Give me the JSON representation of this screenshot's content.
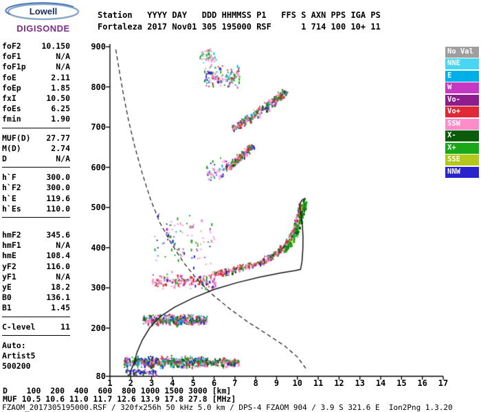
{
  "logo": {
    "top": "Lowell",
    "bottom": "DIGISONDE"
  },
  "header": {
    "line1": "Station   YYYY DAY   DDD HHMMSS P1   FFS S AXN PPS IGA PS",
    "line2": "Fortaleza 2017 Nov01 305 195000 RSF      1 714 100 10+ 11"
  },
  "params": {
    "groups": [
      {
        "rows": [
          [
            "foF2",
            "10.150"
          ],
          [
            "foF1",
            "N/A"
          ],
          [
            "foF1p",
            "N/A"
          ],
          [
            "foE",
            "2.11"
          ],
          [
            "foEp",
            "1.85"
          ],
          [
            "fxI",
            "10.50"
          ],
          [
            "foEs",
            "6.25"
          ],
          [
            "fmin",
            "1.90"
          ]
        ]
      },
      {
        "rows": [
          [
            "MUF(D)",
            "27.77"
          ],
          [
            "M(D)",
            "2.74"
          ],
          [
            "D",
            "N/A"
          ]
        ]
      },
      {
        "rows": [
          [
            "h`F",
            "300.0"
          ],
          [
            "h`F2",
            "300.0"
          ],
          [
            "h`E",
            "119.6"
          ],
          [
            "h`Es",
            "110.0"
          ]
        ]
      },
      {
        "rows": [
          [
            "hmF2",
            "345.6"
          ],
          [
            "hmF1",
            "N/A"
          ],
          [
            "hmE",
            "108.4"
          ],
          [
            "yF2",
            "116.0"
          ],
          [
            "yF1",
            "N/A"
          ],
          [
            "yE",
            "18.2"
          ],
          [
            "B0",
            "136.1"
          ],
          [
            "B1",
            "1.45"
          ]
        ]
      },
      {
        "rows": [
          [
            "C-level",
            "11"
          ]
        ]
      }
    ],
    "auto_lines": [
      "Auto:",
      "Artist5",
      "500200"
    ]
  },
  "palette": {
    "noval": "#9e9e9e",
    "nne": "#49d6f2",
    "e": "#00aee8",
    "w": "#c438c4",
    "vo-": "#8d1d8d",
    "vo+": "#e02838",
    "ssw": "#ff8cc8",
    "x-": "#0a5c0a",
    "x+": "#18a818",
    "sse": "#b2c81a",
    "nnw": "#2a24cc"
  },
  "legend": {
    "items": [
      {
        "key": "noval",
        "label": "No Val"
      },
      {
        "key": "nne",
        "label": "NNE"
      },
      {
        "key": "e",
        "label": "E"
      },
      {
        "key": "w",
        "label": "W"
      },
      {
        "key": "vo-",
        "label": "Vo-"
      },
      {
        "key": "vo+",
        "label": "Vo+"
      },
      {
        "key": "ssw",
        "label": "SSW"
      },
      {
        "key": "x-",
        "label": "X-"
      },
      {
        "key": "x+",
        "label": "X+"
      },
      {
        "key": "sse",
        "label": "SSE"
      },
      {
        "key": "nnw",
        "label": "NNW"
      }
    ]
  },
  "chart_data": {
    "type": "scatter",
    "title": "Digisonde ionogram, Fortaleza, 2017 Nov01 day 305, 19:50:00, RSF",
    "x_unit": "MHz",
    "y_unit": "km",
    "xlim": [
      1,
      17
    ],
    "ylim": [
      80,
      900
    ],
    "x_ticks": [
      1,
      2,
      3,
      4,
      5,
      6,
      7,
      8,
      9,
      10,
      11,
      12,
      13,
      14,
      15,
      16,
      17
    ],
    "y_ticks": [
      900,
      800,
      700,
      600,
      500,
      400,
      300,
      200,
      80
    ],
    "grid": false,
    "legend_position": "right",
    "profile_curve": {
      "style": "solid",
      "comment": "ARTIST true-height electron density profile, peak at foF2=10.15 MHz hmF2=345.6 km with topside extension",
      "points": [
        [
          1.95,
          88
        ],
        [
          2.05,
          100
        ],
        [
          2.15,
          112
        ],
        [
          2.3,
          140
        ],
        [
          2.55,
          170
        ],
        [
          2.9,
          200
        ],
        [
          3.4,
          228
        ],
        [
          4.1,
          252
        ],
        [
          5.0,
          275
        ],
        [
          6.0,
          296
        ],
        [
          7.1,
          313
        ],
        [
          8.2,
          327
        ],
        [
          9.2,
          337
        ],
        [
          9.9,
          343
        ],
        [
          10.15,
          346
        ],
        [
          10.22,
          365
        ],
        [
          10.26,
          395
        ],
        [
          10.27,
          425
        ],
        [
          10.24,
          455
        ],
        [
          10.18,
          480
        ],
        [
          10.12,
          498
        ],
        [
          10.13,
          510
        ],
        [
          10.2,
          517
        ],
        [
          10.32,
          522
        ]
      ]
    },
    "dashed_curve": {
      "style": "dashed",
      "comment": "MUF transmission curve",
      "points": [
        [
          1.28,
          893
        ],
        [
          1.45,
          840
        ],
        [
          1.65,
          780
        ],
        [
          1.9,
          715
        ],
        [
          2.2,
          650
        ],
        [
          2.55,
          585
        ],
        [
          2.95,
          520
        ],
        [
          3.4,
          462
        ],
        [
          3.95,
          410
        ],
        [
          4.55,
          362
        ],
        [
          5.2,
          320
        ],
        [
          5.95,
          282
        ],
        [
          6.75,
          248
        ],
        [
          7.6,
          216
        ],
        [
          8.5,
          186
        ],
        [
          9.4,
          155
        ],
        [
          10.0,
          128
        ],
        [
          10.4,
          100
        ]
      ]
    },
    "clusters": [
      {
        "name": "es-layer-band",
        "kind": "band",
        "f": [
          1.65,
          5.7
        ],
        "h": [
          102,
          133
        ],
        "n": 560,
        "colors": {
          "x-": 0.2,
          "x+": 0.18,
          "nnw": 0.14,
          "ssw": 0.16,
          "vo+": 0.1,
          "w": 0.06,
          "e": 0.08,
          "nne": 0.08
        }
      },
      {
        "name": "es-layer-ext",
        "kind": "band",
        "f": [
          5.7,
          7.15
        ],
        "h": [
          104,
          128
        ],
        "n": 130,
        "colors": {
          "ssw": 0.3,
          "x+": 0.25,
          "vo+": 0.15,
          "x-": 0.15,
          "nnw": 0.15
        }
      },
      {
        "name": "es-low-scatter",
        "kind": "band",
        "f": [
          1.7,
          3.2
        ],
        "h": [
          84,
          101
        ],
        "n": 70,
        "colors": {
          "nnw": 0.4,
          "x-": 0.3,
          "w": 0.15,
          "ssw": 0.15
        }
      },
      {
        "name": "es-second-hop",
        "kind": "band",
        "f": [
          2.55,
          5.65
        ],
        "h": [
          208,
          237
        ],
        "n": 400,
        "colors": {
          "ssw": 0.24,
          "vo+": 0.14,
          "x+": 0.2,
          "x-": 0.12,
          "nnw": 0.12,
          "e": 0.09,
          "w": 0.09
        }
      },
      {
        "name": "f-layer-300km",
        "kind": "band",
        "f": [
          3.0,
          6.05
        ],
        "h": [
          298,
          336
        ],
        "n": 170,
        "colors": {
          "ssw": 0.42,
          "vo+": 0.18,
          "w": 0.1,
          "x+": 0.18,
          "nnw": 0.12
        }
      },
      {
        "name": "f-trace-o-mode",
        "kind": "trace",
        "pts": [
          [
            5.9,
            335
          ],
          [
            6.6,
            342
          ],
          [
            7.3,
            352
          ],
          [
            8.0,
            363
          ],
          [
            8.6,
            376
          ],
          [
            9.1,
            393
          ],
          [
            9.5,
            413
          ],
          [
            9.75,
            436
          ],
          [
            9.95,
            462
          ],
          [
            10.08,
            490
          ],
          [
            10.15,
            508
          ]
        ],
        "jf": 0.12,
        "jh": 9,
        "n": 430,
        "colors": {
          "ssw": 0.3,
          "vo+": 0.27,
          "x+": 0.22,
          "x-": 0.1,
          "w": 0.06,
          "nnw": 0.05
        }
      },
      {
        "name": "f-trace-x-mode",
        "kind": "trace",
        "pts": [
          [
            9.35,
            392
          ],
          [
            9.7,
            416
          ],
          [
            9.98,
            446
          ],
          [
            10.18,
            478
          ],
          [
            10.3,
            505
          ],
          [
            10.35,
            520
          ]
        ],
        "jf": 0.1,
        "jh": 8,
        "n": 170,
        "colors": {
          "x+": 0.5,
          "x-": 0.38,
          "sse": 0.12
        }
      },
      {
        "name": "spread-f-scatter",
        "kind": "band",
        "f": [
          3.1,
          6.0
        ],
        "h": [
          340,
          500
        ],
        "n": 90,
        "colors": {
          "ssw": 0.35,
          "w": 0.2,
          "nnw": 0.15,
          "e": 0.1,
          "x+": 0.2
        }
      },
      {
        "name": "second-hop-600km",
        "kind": "trace",
        "pts": [
          [
            6.5,
            600
          ],
          [
            7.0,
            616
          ],
          [
            7.4,
            636
          ],
          [
            7.8,
            652
          ]
        ],
        "jf": 0.12,
        "jh": 10,
        "n": 170,
        "colors": {
          "ssw": 0.28,
          "vo+": 0.2,
          "x+": 0.24,
          "x-": 0.1,
          "nnw": 0.1,
          "e": 0.08
        }
      },
      {
        "name": "second-hop-sparse",
        "kind": "band",
        "f": [
          5.6,
          6.6
        ],
        "h": [
          555,
          625
        ],
        "n": 45,
        "colors": {
          "ssw": 0.4,
          "nnw": 0.2,
          "e": 0.2,
          "x+": 0.2
        }
      },
      {
        "name": "third-hop-750km",
        "kind": "trace",
        "pts": [
          [
            6.9,
            700
          ],
          [
            7.6,
            722
          ],
          [
            8.3,
            746
          ],
          [
            9.0,
            772
          ],
          [
            9.4,
            790
          ]
        ],
        "jf": 0.13,
        "jh": 12,
        "n": 270,
        "colors": {
          "ssw": 0.27,
          "vo+": 0.17,
          "x+": 0.22,
          "x-": 0.12,
          "w": 0.08,
          "nnw": 0.08,
          "e": 0.06
        }
      },
      {
        "name": "top-hop-830km",
        "kind": "band",
        "f": [
          5.5,
          7.2
        ],
        "h": [
          795,
          858
        ],
        "n": 120,
        "colors": {
          "ssw": 0.3,
          "x+": 0.2,
          "w": 0.12,
          "nnw": 0.13,
          "e": 0.1,
          "vo+": 0.15
        }
      },
      {
        "name": "top-edge-880km",
        "kind": "band",
        "f": [
          5.3,
          6.1
        ],
        "h": [
          860,
          897
        ],
        "n": 40,
        "colors": {
          "ssw": 0.4,
          "x+": 0.3,
          "nne": 0.3
        }
      }
    ]
  },
  "bottom": {
    "d_row": "D    100  200  400  600  800 1000 1500 3000 [km]",
    "muf_row": "MUF 10.5 10.6 11.0 11.7 12.6 13.9 17.8 27.8 [MHz]",
    "d_km": [
      100,
      200,
      400,
      600,
      800,
      1000,
      1500,
      3000
    ],
    "muf_mhz": [
      10.5,
      10.6,
      11.0,
      11.7,
      12.6,
      13.9,
      17.8,
      27.8
    ],
    "footer": "FZAOM_2017305195000.RSF / 320fx256h 50 kHz 5.0 km / DPS-4 FZAOM 904 / 3.9 S 321.6 E  Ion2Png 1.3.20"
  }
}
